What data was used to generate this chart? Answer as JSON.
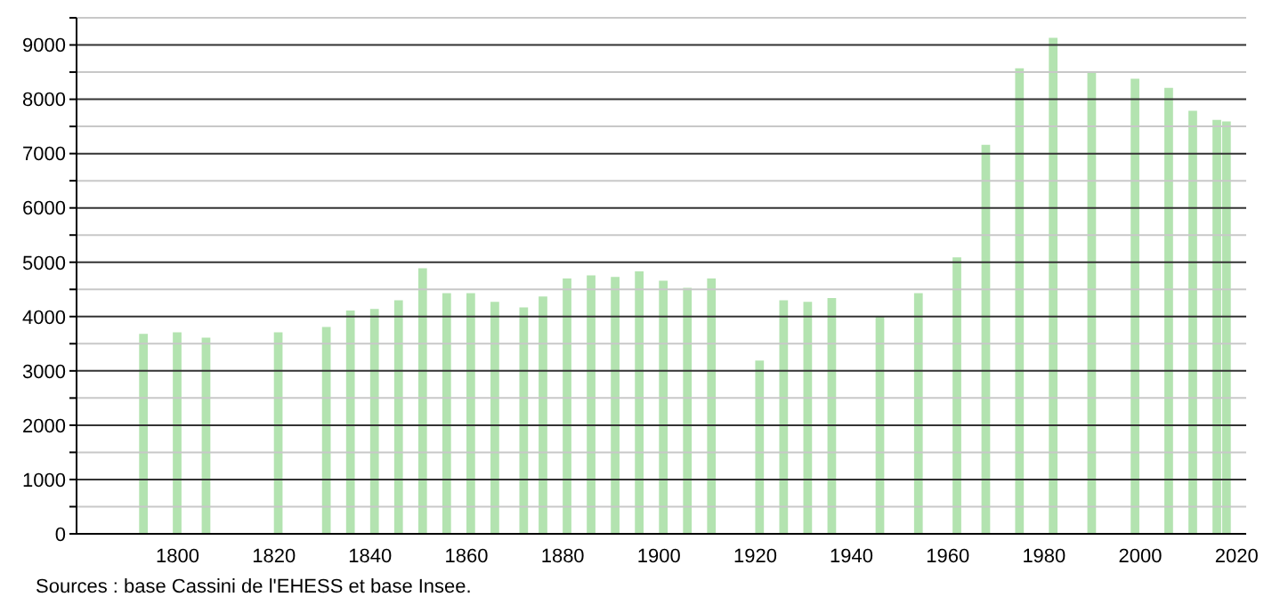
{
  "chart_data": {
    "type": "bar",
    "x": [
      1793,
      1800,
      1806,
      1821,
      1831,
      1836,
      1841,
      1846,
      1851,
      1856,
      1861,
      1866,
      1872,
      1876,
      1881,
      1886,
      1891,
      1896,
      1901,
      1906,
      1911,
      1921,
      1926,
      1931,
      1936,
      1946,
      1954,
      1962,
      1968,
      1975,
      1982,
      1990,
      1999,
      2006,
      2011,
      2016,
      2018
    ],
    "values": [
      3680,
      3710,
      3610,
      3710,
      3810,
      4110,
      4140,
      4300,
      4890,
      4430,
      4430,
      4270,
      4170,
      4370,
      4700,
      4760,
      4730,
      4830,
      4660,
      4530,
      4700,
      3190,
      4300,
      4270,
      4340,
      4010,
      4430,
      5090,
      7160,
      8570,
      9130,
      8500,
      8380,
      8210,
      7790,
      7620,
      7590
    ],
    "color": "#b3e3b0",
    "xlim": [
      1779,
      2022
    ],
    "xticks": [
      1800,
      1820,
      1840,
      1860,
      1880,
      1900,
      1920,
      1940,
      1960,
      1980,
      2000,
      2020
    ],
    "ylim": [
      0,
      9500
    ],
    "yticks": [
      0,
      {
        "value": 500,
        "label": null
      },
      1000,
      {
        "value": 1500,
        "label": null
      },
      2000,
      {
        "value": 2500,
        "label": null
      },
      3000,
      {
        "value": 3500,
        "label": null
      },
      4000,
      {
        "value": 4500,
        "label": null
      },
      5000,
      {
        "value": 5500,
        "label": null
      },
      6000,
      {
        "value": 6500,
        "label": null
      },
      7000,
      {
        "value": 7500,
        "label": null
      },
      8000,
      {
        "value": 8500,
        "label": null
      },
      9000,
      {
        "value": 9500,
        "label": null
      }
    ],
    "grid": "y",
    "annotations": [
      "Sources : base Cassini de l'EHESS et base Insee."
    ]
  }
}
